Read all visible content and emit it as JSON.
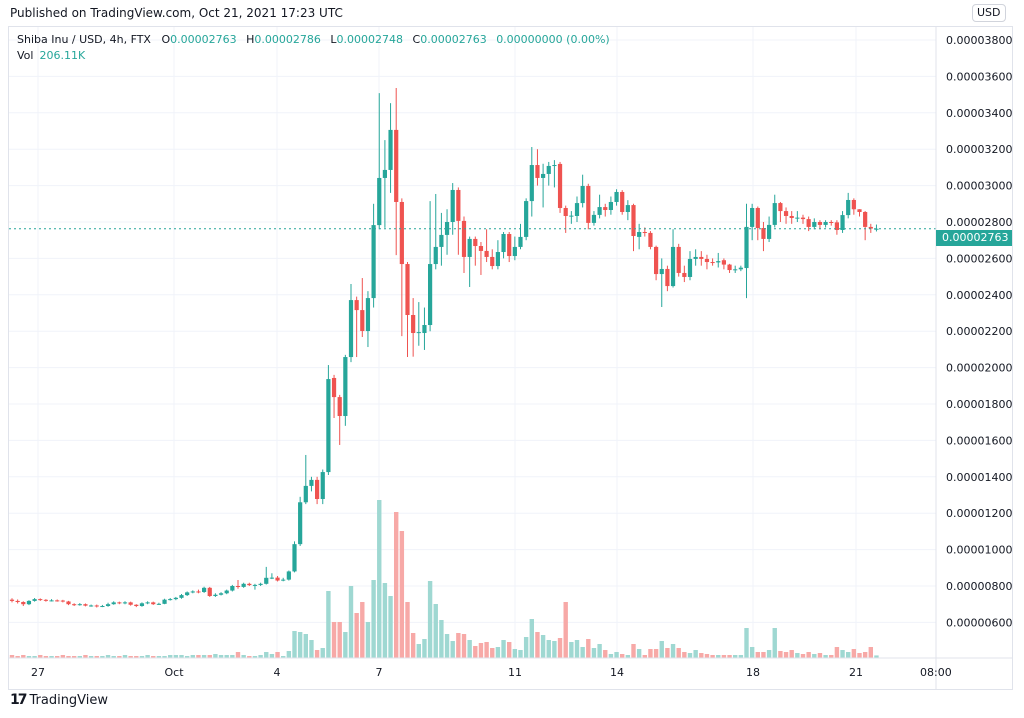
{
  "header": {
    "published": "Published on TradingView.com, Oct 21, 2021 17:23 UTC"
  },
  "legend": {
    "symbol": "Shiba Inu / USD, 4h, FTX",
    "o_label": "O",
    "o": "0.00002763",
    "h_label": "H",
    "h": "0.00002786",
    "l_label": "L",
    "l": "0.00002748",
    "c_label": "C",
    "c": "0.00002763",
    "change": "0.00000000 (0.00%)",
    "vol_label": "Vol",
    "vol": "206.11K"
  },
  "currency_badge": "USD",
  "current_price_label": "0.00002763",
  "footer": {
    "logo_text": "TradingView"
  },
  "colors": {
    "up": "#26a69a",
    "down": "#ef5350",
    "up_volume": "#9fd8d2",
    "down_volume": "#f7a9a7",
    "current_price_line": "#26a69a"
  },
  "chart_data": {
    "type": "candlestick",
    "title": "Shiba Inu / USD, 4h, FTX",
    "interval": "4h",
    "y_ticks": [
      "0.00003800",
      "0.00003600",
      "0.00003400",
      "0.00003200",
      "0.00003000",
      "0.00002800",
      "0.00002600",
      "0.00002400",
      "0.00002200",
      "0.00002000",
      "0.00001800",
      "0.00001600",
      "0.00001400",
      "0.00001200",
      "0.00001000",
      "0.00000800",
      "0.00000600"
    ],
    "x_ticks": [
      "27",
      "Oct",
      "4",
      "7",
      "11",
      "14",
      "18",
      "21",
      "08:00"
    ],
    "ylim": [
      4.8e-06,
      3.87e-05
    ],
    "grid": true,
    "current_price": 2.763e-05,
    "candles_format": [
      "open",
      "high",
      "low",
      "close"
    ],
    "candles": [
      [
        7.25e-06,
        7.33e-06,
        7.1e-06,
        7.18e-06
      ],
      [
        7.18e-06,
        7.26e-06,
        7.04e-06,
        7.12e-06
      ],
      [
        7.12e-06,
        7.16e-06,
        6.9e-06,
        7e-06
      ],
      [
        7e-06,
        7.22e-06,
        6.95e-06,
        7.18e-06
      ],
      [
        7.18e-06,
        7.34e-06,
        7.14e-06,
        7.28e-06
      ],
      [
        7.28e-06,
        7.32e-06,
        7.18e-06,
        7.24e-06
      ],
      [
        7.24e-06,
        7.28e-06,
        7.14e-06,
        7.2e-06
      ],
      [
        7.2e-06,
        7.28e-06,
        7.15e-06,
        7.21e-06
      ],
      [
        7.21e-06,
        7.26e-06,
        7.14e-06,
        7.2e-06
      ],
      [
        7.2e-06,
        7.24e-06,
        7.1e-06,
        7.15e-06
      ],
      [
        7.15e-06,
        7.18e-06,
        6.95e-06,
        7e-06
      ],
      [
        7e-06,
        7.05e-06,
        6.9e-06,
        6.96e-06
      ],
      [
        6.96e-06,
        7.06e-06,
        6.92e-06,
        7e-06
      ],
      [
        7e-06,
        7.04e-06,
        6.88e-06,
        6.92e-06
      ],
      [
        6.92e-06,
        6.98e-06,
        6.86e-06,
        6.93e-06
      ],
      [
        6.93e-06,
        6.98e-06,
        6.82e-06,
        6.88e-06
      ],
      [
        6.88e-06,
        6.96e-06,
        6.84e-06,
        6.9e-06
      ],
      [
        6.9e-06,
        7.08e-06,
        6.86e-06,
        7e-06
      ],
      [
        7e-06,
        7.16e-06,
        6.97e-06,
        7.1e-06
      ],
      [
        7.1e-06,
        7.14e-06,
        7e-06,
        7.05e-06
      ],
      [
        7.05e-06,
        7.16e-06,
        7e-06,
        7.1e-06
      ],
      [
        7.1e-06,
        7.14e-06,
        6.92e-06,
        6.97e-06
      ],
      [
        6.97e-06,
        7e-06,
        6.84e-06,
        6.9e-06
      ],
      [
        6.9e-06,
        7.1e-06,
        6.86e-06,
        7.05e-06
      ],
      [
        7.05e-06,
        7.16e-06,
        7e-06,
        7.1e-06
      ],
      [
        7.1e-06,
        7.14e-06,
        6.96e-06,
        7e-06
      ],
      [
        7e-06,
        7.08e-06,
        6.96e-06,
        7.02e-06
      ],
      [
        7.02e-06,
        7.3e-06,
        7e-06,
        7.25e-06
      ],
      [
        7.25e-06,
        7.34e-06,
        7.2e-06,
        7.28e-06
      ],
      [
        7.28e-06,
        7.4e-06,
        7.22e-06,
        7.35e-06
      ],
      [
        7.35e-06,
        7.56e-06,
        7.3e-06,
        7.5e-06
      ],
      [
        7.5e-06,
        7.7e-06,
        7.45e-06,
        7.65e-06
      ],
      [
        7.65e-06,
        7.76e-06,
        7.6e-06,
        7.7e-06
      ],
      [
        7.7e-06,
        7.8e-06,
        7.6e-06,
        7.67e-06
      ],
      [
        7.67e-06,
        7.96e-06,
        7.62e-06,
        7.9e-06
      ],
      [
        7.9e-06,
        7.95e-06,
        7.4e-06,
        7.45e-06
      ],
      [
        7.45e-06,
        7.6e-06,
        7.4e-06,
        7.52e-06
      ],
      [
        7.52e-06,
        7.66e-06,
        7.48e-06,
        7.6e-06
      ],
      [
        7.6e-06,
        7.8e-06,
        7.55e-06,
        7.75e-06
      ],
      [
        7.75e-06,
        8.06e-06,
        7.7e-06,
        8e-06
      ],
      [
        8e-06,
        8.33e-06,
        7.85e-06,
        7.95e-06
      ],
      [
        7.95e-06,
        8.18e-06,
        7.9e-06,
        8.12e-06
      ],
      [
        8.12e-06,
        8.18e-06,
        8e-06,
        8.05e-06
      ],
      [
        8.05e-06,
        8.12e-06,
        7.8e-06,
        8.06e-06
      ],
      [
        8.06e-06,
        8.18e-06,
        8e-06,
        8.12e-06
      ],
      [
        8.12e-06,
        9.05e-06,
        8.08e-06,
        8.45e-06
      ],
      [
        8.45e-06,
        8.7e-06,
        8.38e-06,
        8.46e-06
      ],
      [
        8.46e-06,
        8.55e-06,
        8.25e-06,
        8.3e-06
      ],
      [
        8.3e-06,
        8.45e-06,
        8.26e-06,
        8.35e-06
      ],
      [
        8.35e-06,
        8.85e-06,
        8.3e-06,
        8.8e-06
      ],
      [
        8.8e-06,
        1.045e-05,
        8.75e-06,
        1.03e-05
      ],
      [
        1.03e-05,
        1.29e-05,
        1.02e-05,
        1.26e-05
      ],
      [
        1.26e-05,
        1.52e-05,
        1.25e-05,
        1.35e-05
      ],
      [
        1.35e-05,
        1.4e-05,
        1.32e-05,
        1.383e-05
      ],
      [
        1.383e-05,
        1.4e-05,
        1.25e-05,
        1.278e-05
      ],
      [
        1.278e-05,
        1.44e-05,
        1.25e-05,
        1.426e-05
      ],
      [
        1.426e-05,
        2.014e-05,
        1.41e-05,
        1.937e-05
      ],
      [
        1.943e-05,
        1.96e-05,
        1.723e-05,
        1.838e-05
      ],
      [
        1.838e-05,
        1.85e-05,
        1.575e-05,
        1.734e-05
      ],
      [
        1.734e-05,
        2.07e-05,
        1.68e-05,
        2.058e-05
      ],
      [
        2.058e-05,
        2.459e-05,
        2.03e-05,
        2.371e-05
      ],
      [
        2.371e-05,
        2.39e-05,
        2.058e-05,
        2.316e-05
      ],
      [
        2.316e-05,
        2.492e-05,
        2.168e-05,
        2.201e-05
      ],
      [
        2.201e-05,
        2.42e-05,
        2.113e-05,
        2.382e-05
      ],
      [
        2.382e-05,
        2.9e-05,
        2.33e-05,
        2.783e-05
      ],
      [
        2.783e-05,
        3.508e-05,
        2.76e-05,
        3.042e-05
      ],
      [
        3.042e-05,
        3.25e-05,
        2.768e-05,
        3.086e-05
      ],
      [
        3.086e-05,
        3.453e-05,
        2.96e-05,
        3.306e-05
      ],
      [
        3.306e-05,
        3.536e-05,
        2.618e-05,
        2.91e-05
      ],
      [
        2.91e-05,
        2.93e-05,
        2.173e-05,
        2.569e-05
      ],
      [
        2.569e-05,
        2.58e-05,
        2.058e-05,
        2.289e-05
      ],
      [
        2.289e-05,
        2.382e-05,
        2.06e-05,
        2.19e-05
      ],
      [
        2.19e-05,
        2.36e-05,
        2.12e-05,
        2.195e-05
      ],
      [
        2.19e-05,
        2.33e-05,
        2.097e-05,
        2.234e-05
      ],
      [
        2.234e-05,
        2.915e-05,
        2.2e-05,
        2.569e-05
      ],
      [
        2.569e-05,
        2.954e-05,
        2.54e-05,
        2.663e-05
      ],
      [
        2.663e-05,
        2.85e-05,
        2.56e-05,
        2.729e-05
      ],
      [
        2.729e-05,
        2.87e-05,
        2.62e-05,
        2.8e-05
      ],
      [
        2.8e-05,
        3.014e-05,
        2.73e-05,
        2.976e-05
      ],
      [
        2.976e-05,
        2.99e-05,
        2.62e-05,
        2.806e-05
      ],
      [
        2.806e-05,
        2.83e-05,
        2.52e-05,
        2.608e-05
      ],
      [
        2.608e-05,
        2.72e-05,
        2.443e-05,
        2.707e-05
      ],
      [
        2.707e-05,
        2.72e-05,
        2.56e-05,
        2.668e-05
      ],
      [
        2.668e-05,
        2.69e-05,
        2.509e-05,
        2.641e-05
      ],
      [
        2.641e-05,
        2.76e-05,
        2.58e-05,
        2.608e-05
      ],
      [
        2.608e-05,
        2.65e-05,
        2.54e-05,
        2.558e-05
      ],
      [
        2.558e-05,
        2.7e-05,
        2.54e-05,
        2.635e-05
      ],
      [
        2.635e-05,
        2.745e-05,
        2.6e-05,
        2.734e-05
      ],
      [
        2.734e-05,
        2.745e-05,
        2.58e-05,
        2.613e-05
      ],
      [
        2.613e-05,
        2.72e-05,
        2.59e-05,
        2.663e-05
      ],
      [
        2.663e-05,
        2.79e-05,
        2.65e-05,
        2.718e-05
      ],
      [
        2.718e-05,
        2.93e-05,
        2.7e-05,
        2.915e-05
      ],
      [
        2.915e-05,
        3.212e-05,
        2.83e-05,
        3.113e-05
      ],
      [
        3.113e-05,
        3.2e-05,
        3e-05,
        3.042e-05
      ],
      [
        3.042e-05,
        3.12e-05,
        2.88e-05,
        3.064e-05
      ],
      [
        3.064e-05,
        3.13e-05,
        3e-05,
        3.108e-05
      ],
      [
        3.108e-05,
        3.14e-05,
        2.99e-05,
        3.113e-05
      ],
      [
        3.119e-05,
        3.13e-05,
        2.85e-05,
        2.877e-05
      ],
      [
        2.877e-05,
        2.89e-05,
        2.74e-05,
        2.833e-05
      ],
      [
        2.833e-05,
        2.86e-05,
        2.79e-05,
        2.835e-05
      ],
      [
        2.833e-05,
        2.94e-05,
        2.8e-05,
        2.904e-05
      ],
      [
        2.904e-05,
        3.06e-05,
        2.88e-05,
        2.998e-05
      ],
      [
        2.998e-05,
        3.01e-05,
        2.76e-05,
        2.795e-05
      ],
      [
        2.795e-05,
        2.86e-05,
        2.78e-05,
        2.839e-05
      ],
      [
        2.839e-05,
        2.95e-05,
        2.82e-05,
        2.882e-05
      ],
      [
        2.882e-05,
        2.9e-05,
        2.83e-05,
        2.866e-05
      ],
      [
        2.866e-05,
        2.94e-05,
        2.84e-05,
        2.91e-05
      ],
      [
        2.91e-05,
        2.98e-05,
        2.89e-05,
        2.965e-05
      ],
      [
        2.965e-05,
        2.975e-05,
        2.84e-05,
        2.855e-05
      ],
      [
        2.855e-05,
        2.92e-05,
        2.81e-05,
        2.893e-05
      ],
      [
        2.893e-05,
        2.9e-05,
        2.64e-05,
        2.723e-05
      ],
      [
        2.718e-05,
        2.79e-05,
        2.65e-05,
        2.745e-05
      ],
      [
        2.745e-05,
        2.77e-05,
        2.72e-05,
        2.74e-05
      ],
      [
        2.74e-05,
        2.75e-05,
        2.65e-05,
        2.663e-05
      ],
      [
        2.663e-05,
        2.67e-05,
        2.48e-05,
        2.514e-05
      ],
      [
        2.514e-05,
        2.6e-05,
        2.333e-05,
        2.542e-05
      ],
      [
        2.542e-05,
        2.56e-05,
        2.42e-05,
        2.448e-05
      ],
      [
        2.448e-05,
        2.76e-05,
        2.44e-05,
        2.663e-05
      ],
      [
        2.663e-05,
        2.68e-05,
        2.5e-05,
        2.52e-05
      ],
      [
        2.52e-05,
        2.56e-05,
        2.47e-05,
        2.498e-05
      ],
      [
        2.498e-05,
        2.64e-05,
        2.48e-05,
        2.597e-05
      ],
      [
        2.597e-05,
        2.65e-05,
        2.56e-05,
        2.608e-05
      ],
      [
        2.608e-05,
        2.64e-05,
        2.56e-05,
        2.597e-05
      ],
      [
        2.597e-05,
        2.62e-05,
        2.54e-05,
        2.58e-05
      ],
      [
        2.58e-05,
        2.6e-05,
        2.56e-05,
        2.578e-05
      ],
      [
        2.578e-05,
        2.63e-05,
        2.55e-05,
        2.585e-05
      ],
      [
        2.59e-05,
        2.6e-05,
        2.54e-05,
        2.566e-05
      ],
      [
        2.566e-05,
        2.57e-05,
        2.52e-05,
        2.536e-05
      ],
      [
        2.536e-05,
        2.56e-05,
        2.52e-05,
        2.54e-05
      ],
      [
        2.54e-05,
        2.56e-05,
        2.53e-05,
        2.549e-05
      ],
      [
        2.547e-05,
        2.9e-05,
        2.382e-05,
        2.773e-05
      ],
      [
        2.773e-05,
        2.9e-05,
        2.7e-05,
        2.877e-05
      ],
      [
        2.877e-05,
        2.885e-05,
        2.7e-05,
        2.767e-05
      ],
      [
        2.767e-05,
        2.8e-05,
        2.64e-05,
        2.707e-05
      ],
      [
        2.707e-05,
        2.83e-05,
        2.69e-05,
        2.784e-05
      ],
      [
        2.784e-05,
        2.95e-05,
        2.77e-05,
        2.904e-05
      ],
      [
        2.904e-05,
        2.91e-05,
        2.8e-05,
        2.86e-05
      ],
      [
        2.86e-05,
        2.88e-05,
        2.79e-05,
        2.833e-05
      ],
      [
        2.833e-05,
        2.86e-05,
        2.79e-05,
        2.822e-05
      ],
      [
        2.822e-05,
        2.86e-05,
        2.8e-05,
        2.824e-05
      ],
      [
        2.824e-05,
        2.84e-05,
        2.79e-05,
        2.816e-05
      ],
      [
        2.816e-05,
        2.83e-05,
        2.75e-05,
        2.773e-05
      ],
      [
        2.773e-05,
        2.82e-05,
        2.76e-05,
        2.8e-05
      ],
      [
        2.8e-05,
        2.81e-05,
        2.76e-05,
        2.784e-05
      ],
      [
        2.784e-05,
        2.81e-05,
        2.77e-05,
        2.8e-05
      ],
      [
        2.8e-05,
        2.81e-05,
        2.78e-05,
        2.798e-05
      ],
      [
        2.798e-05,
        2.81e-05,
        2.73e-05,
        2.756e-05
      ],
      [
        2.756e-05,
        2.86e-05,
        2.74e-05,
        2.838e-05
      ],
      [
        2.838e-05,
        2.96e-05,
        2.82e-05,
        2.921e-05
      ],
      [
        2.921e-05,
        2.93e-05,
        2.84e-05,
        2.87e-05
      ],
      [
        2.87e-05,
        2.87e-05,
        2.83e-05,
        2.855e-05
      ],
      [
        2.855e-05,
        2.86e-05,
        2.7e-05,
        2.773e-05
      ],
      [
        2.773e-05,
        2.79e-05,
        2.74e-05,
        2.764e-05
      ],
      [
        2.763e-05,
        2.786e-05,
        2.748e-05,
        2.763e-05
      ]
    ],
    "volume": [
      240000,
      160000,
      240000,
      160000,
      160000,
      240000,
      160000,
      160000,
      160000,
      240000,
      160000,
      160000,
      160000,
      240000,
      160000,
      160000,
      160000,
      240000,
      160000,
      160000,
      240000,
      160000,
      160000,
      160000,
      240000,
      160000,
      160000,
      160000,
      240000,
      240000,
      240000,
      160000,
      240000,
      240000,
      240000,
      240000,
      320000,
      240000,
      240000,
      240000,
      480000,
      240000,
      160000,
      160000,
      240000,
      480000,
      320000,
      480000,
      160000,
      560000,
      2160000,
      2080000,
      1920000,
      1440000,
      640000,
      800000,
      5360000,
      2880000,
      2880000,
      2080000,
      5760000,
      3600000,
      4480000,
      2880000,
      6240000,
      12640000,
      6000000,
      4960000,
      11680000,
      10160000,
      4480000,
      2000000,
      1120000,
      1520000,
      6160000,
      4320000,
      3040000,
      1920000,
      1360000,
      2000000,
      1920000,
      1440000,
      960000,
      1200000,
      1280000,
      800000,
      880000,
      1440000,
      1280000,
      720000,
      640000,
      1680000,
      3120000,
      2080000,
      1840000,
      1440000,
      1360000,
      1600000,
      4480000,
      1280000,
      1440000,
      880000,
      1520000,
      800000,
      1120000,
      640000,
      320000,
      480000,
      320000,
      240000,
      1120000,
      720000,
      240000,
      720000,
      720000,
      1360000,
      800000,
      1120000,
      800000,
      480000,
      400000,
      640000,
      400000,
      320000,
      240000,
      240000,
      240000,
      240000,
      240000,
      240000,
      2400000,
      880000,
      480000,
      480000,
      640000,
      2400000,
      560000,
      480000,
      640000,
      400000,
      320000,
      480000,
      320000,
      400000,
      240000,
      240000,
      880000,
      640000,
      480000,
      720000,
      400000,
      480000,
      880000,
      206110
    ]
  }
}
